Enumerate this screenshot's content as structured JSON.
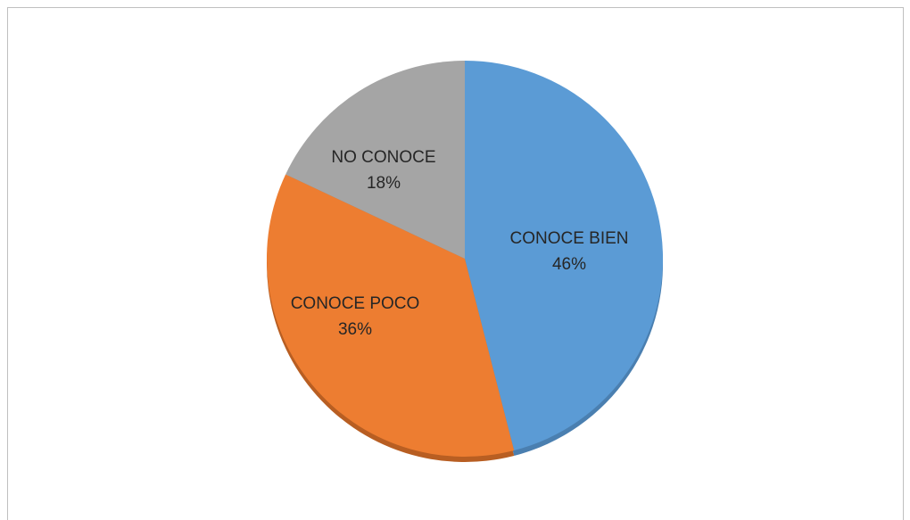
{
  "chart_data": {
    "type": "pie",
    "title": "",
    "slices": [
      {
        "label": "CONOCE BIEN",
        "value": 46,
        "value_label": "46%",
        "color": "#5b9bd5",
        "shadow_color": "#4a7fb0"
      },
      {
        "label": "CONOCE POCO",
        "value": 36,
        "value_label": "36%",
        "color": "#ed7d31",
        "shadow_color": "#b85e22"
      },
      {
        "label": "NO CONOCE",
        "value": 18,
        "value_label": "18%",
        "color": "#a5a5a5",
        "shadow_color": "#7f7f7f"
      }
    ],
    "start": "12 o'clock",
    "direction": "clockwise",
    "legend": "none",
    "labels": "inside"
  }
}
